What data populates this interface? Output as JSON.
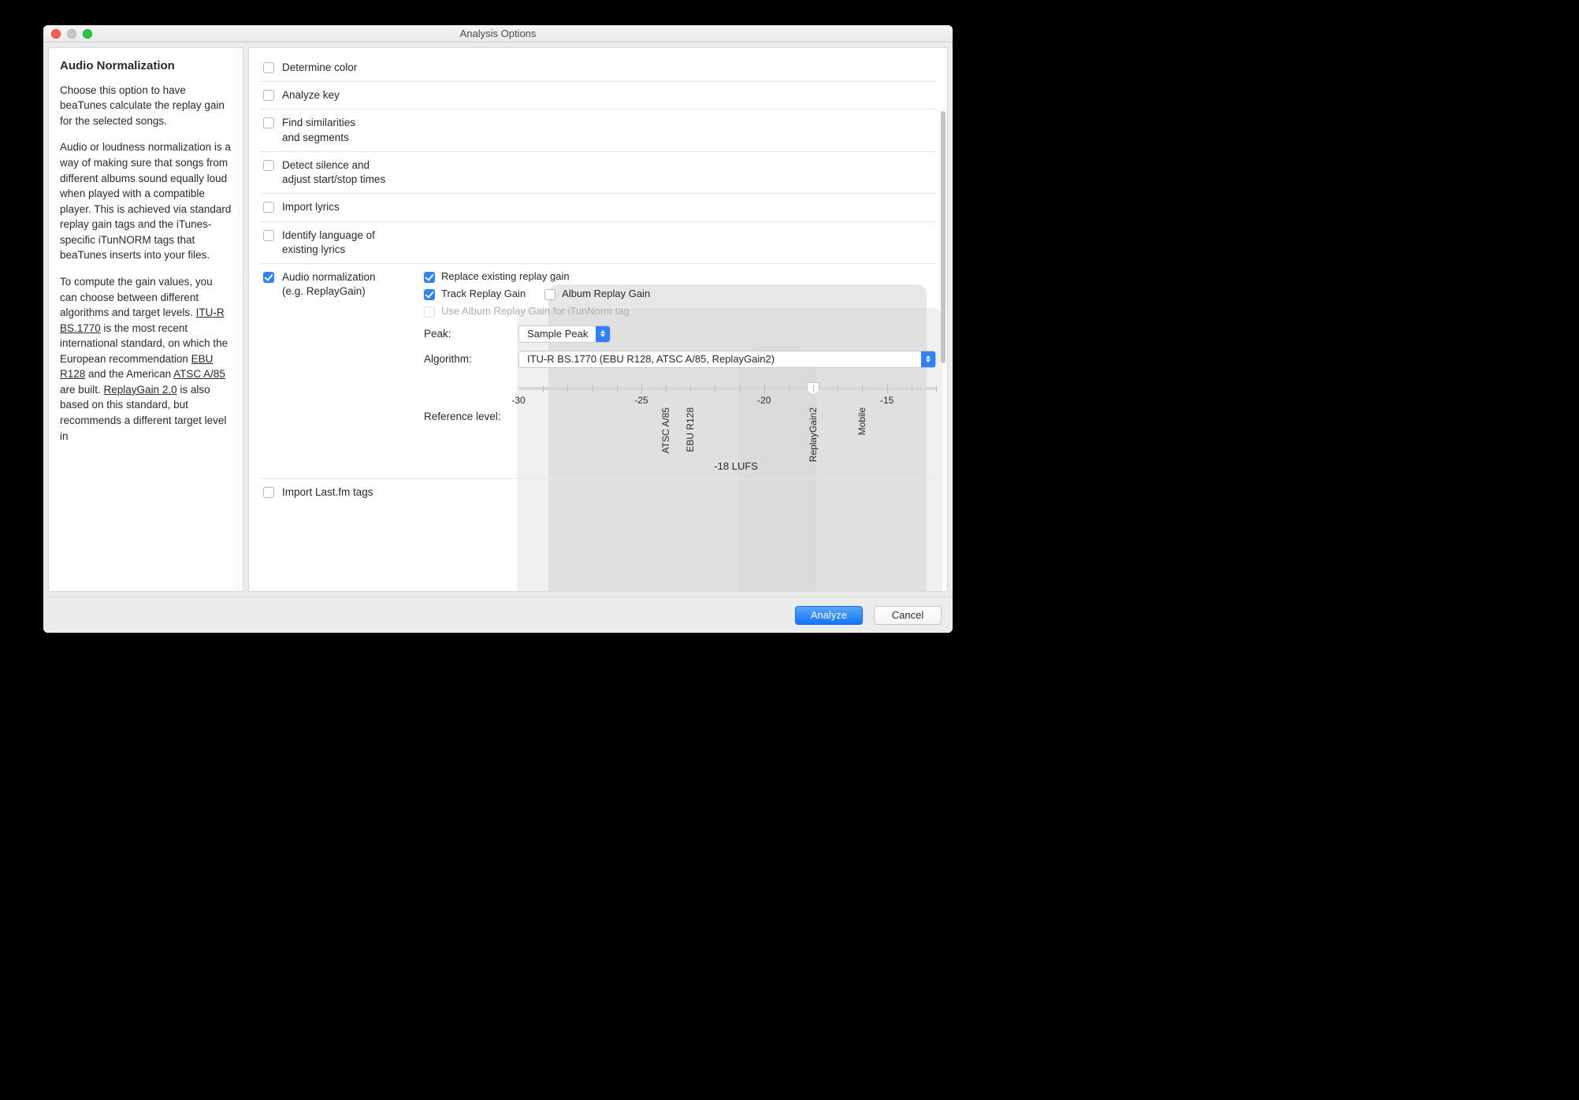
{
  "window": {
    "title": "Analysis Options"
  },
  "sidebar": {
    "heading": "Audio Normalization",
    "p1": "Choose this option to have beaTunes calculate the replay gain for the selected songs.",
    "p2": "Audio or loudness normalization is a way of making sure that songs from different albums sound equally loud when played with a compatible player. This is achieved via standard replay gain tags and the iTunes-specific iTunNORM tags that beaTunes inserts into your files.",
    "p3a": "To compute the gain values, you can choose between different algorithms and target levels. ",
    "link1": "ITU-R BS.1770",
    "p3b": " is the most recent international standard, on which the European recommendation ",
    "link2": "EBU R128",
    "p3c": " and the American ",
    "link3": "ATSC A/85",
    "p3d": " are built. ",
    "link4": "ReplayGain 2.0",
    "p3e": " is also based on this standard, but recommends a different target level in"
  },
  "options": {
    "determine_color": "Determine color",
    "analyze_key": "Analyze key",
    "similarities": "Find similarities\nand segments",
    "detect_silence": "Detect silence and\nadjust start/stop times",
    "import_lyrics": "Import lyrics",
    "identify_language": "Identify language of\nexisting lyrics",
    "audio_norm": "Audio normalization\n(e.g. ReplayGain)",
    "import_lastfm": "Import Last.fm tags"
  },
  "norm": {
    "replace": "Replace existing replay gain",
    "track_rg": "Track Replay Gain",
    "album_rg": "Album Replay Gain",
    "use_album": "Use Album Replay Gain for iTunNorm tag",
    "peak_label": "Peak:",
    "peak_value": "Sample Peak",
    "algo_label": "Algorithm:",
    "algo_value": "ITU-R BS.1770 (EBU R128, ATSC A/85, ReplayGain2)",
    "ref_label": "Reference level:",
    "ticks": {
      "t-30": "-30",
      "t-25": "-25",
      "t-20": "-20",
      "t-15": "-15"
    },
    "markers": {
      "atsc": "ATSC A/85",
      "ebu": "EBU R128",
      "rg2": "ReplayGain2",
      "mob": "Mobile"
    },
    "slider": {
      "min": -30,
      "max": -13,
      "value": -18
    },
    "lufs": "-18 LUFS"
  },
  "buttons": {
    "analyze": "Analyze",
    "cancel": "Cancel"
  },
  "colors": {
    "accent": "#2f82ff"
  }
}
